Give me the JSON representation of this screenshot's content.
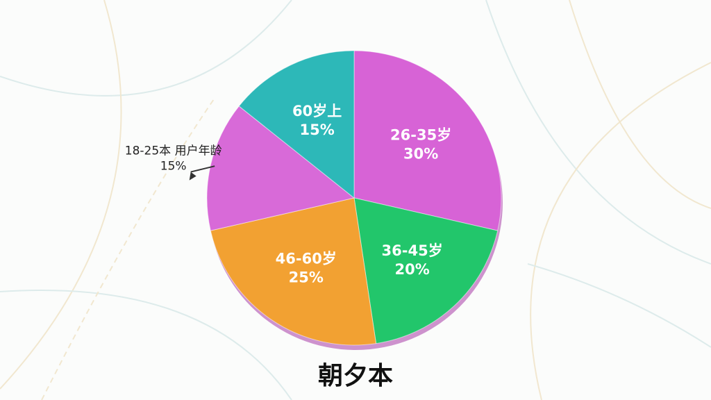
{
  "chart_data": {
    "type": "pie",
    "title": "朝夕本",
    "categories": [
      "26-35岁",
      "36-45岁",
      "46-60岁",
      "18-25本 用户年龄",
      "60岁上"
    ],
    "values": [
      30,
      20,
      25,
      15,
      15
    ],
    "value_labels": [
      "30%",
      "20%",
      "25%",
      "15%",
      "15%"
    ],
    "colors": [
      "#d763d6",
      "#22c66b",
      "#f2a132",
      "#d86ad8",
      "#2db8b8"
    ]
  }
}
